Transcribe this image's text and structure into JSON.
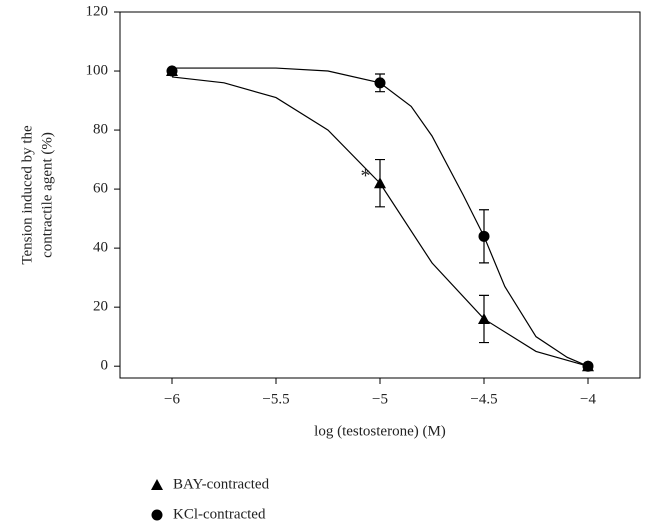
{
  "chart_data": {
    "type": "scatter",
    "xlabel": "log (testosterone) (M)",
    "ylabel": [
      "Tension induced by the",
      "contractile agent (%)"
    ],
    "xlim": [
      -6.25,
      -3.75
    ],
    "xticks": [
      {
        "value": -6,
        "label": "−6"
      },
      {
        "value": -5.5,
        "label": "−5.5"
      },
      {
        "value": -5,
        "label": "−5"
      },
      {
        "value": -4.5,
        "label": "−4.5"
      },
      {
        "value": -4,
        "label": "−4"
      }
    ],
    "ylim": [
      -4,
      120
    ],
    "yticks": [
      0,
      20,
      40,
      60,
      80,
      100,
      120
    ],
    "legend": "bottom-left",
    "annotations": [
      {
        "text": "*",
        "x": -5.07,
        "y": 64
      }
    ],
    "series": [
      {
        "name": "BAY-contracted",
        "marker": "triangle",
        "color": "#000000",
        "x": [
          -6,
          -5,
          -4.5,
          -4
        ],
        "values": [
          100,
          62,
          16,
          0
        ],
        "errors": [
          null,
          8,
          8,
          null
        ],
        "fit": {
          "x": [
            -6,
            -5.75,
            -5.5,
            -5.25,
            -5,
            -4.75,
            -4.5,
            -4.25,
            -4
          ],
          "y": [
            98,
            96,
            91,
            80,
            62,
            35,
            16,
            5,
            0
          ]
        }
      },
      {
        "name": "KCl-contracted",
        "marker": "circle",
        "color": "#000000",
        "x": [
          -6,
          -5,
          -4.5,
          -4
        ],
        "values": [
          100,
          96,
          44,
          0
        ],
        "errors": [
          null,
          3,
          9,
          null
        ],
        "fit": {
          "x": [
            -6,
            -5.5,
            -5.25,
            -5,
            -4.85,
            -4.75,
            -4.6,
            -4.5,
            -4.4,
            -4.25,
            -4.1,
            -4
          ],
          "y": [
            101,
            101,
            100,
            96,
            88,
            78,
            58,
            44,
            27,
            10,
            3,
            0
          ]
        }
      }
    ]
  }
}
